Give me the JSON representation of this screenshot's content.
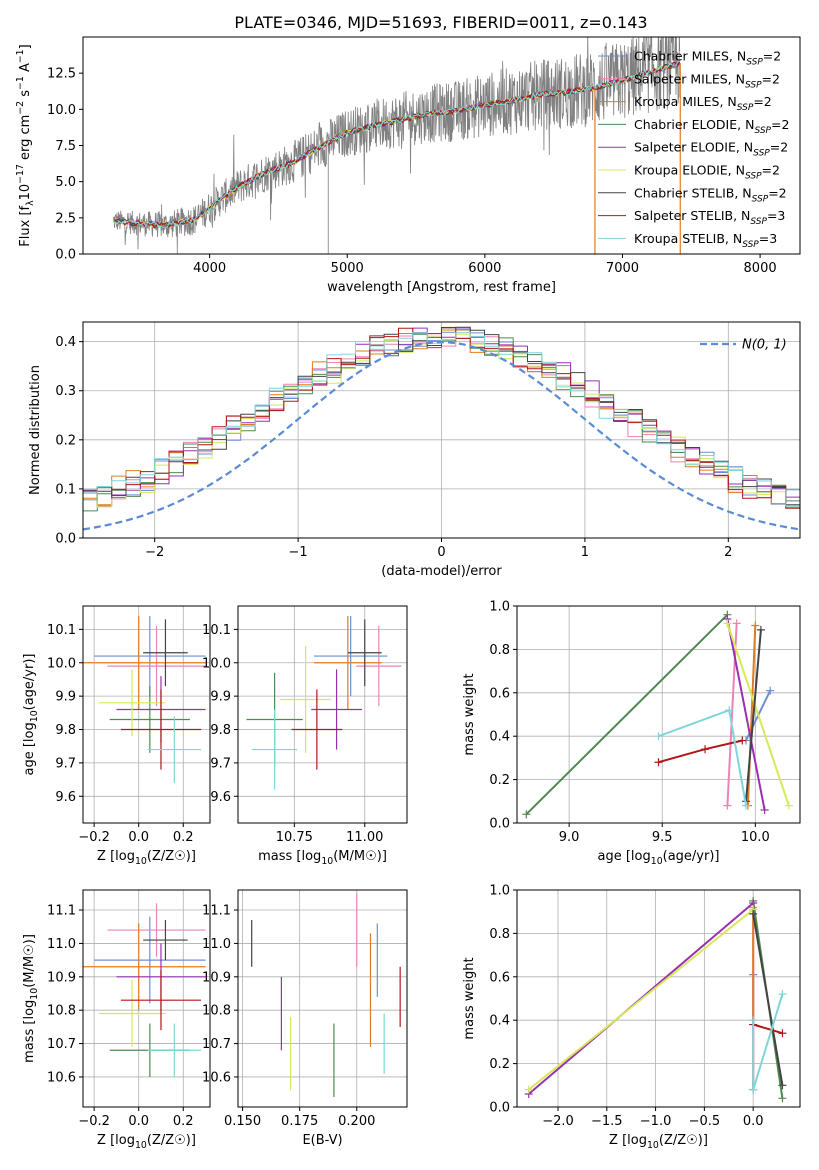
{
  "title": "PLATE=0346, MJD=51693, FIBERID=0011, z=0.143",
  "colors": {
    "chabrier_miles": "#6a8fd8",
    "salpeter_miles": "#ee82b4",
    "kroupa_miles": "#e07c1e",
    "chabrier_elodie": "#4f8a4f",
    "salpeter_elodie": "#9a2fb0",
    "kroupa_elodie": "#d7e85a",
    "chabrier_stelib": "#444444",
    "salpeter_stelib": "#b01818",
    "kroupa_stelib": "#7fd6d9",
    "data": "#808080",
    "normal": "#5b8bd6"
  },
  "legend": [
    {
      "key": "chabrier_miles",
      "label": "Chabrier MILES, N_SSP=2"
    },
    {
      "key": "salpeter_miles",
      "label": "Salpeter MILES, N_SSP=2"
    },
    {
      "key": "kroupa_miles",
      "label": "Kroupa MILES, N_SSP=2"
    },
    {
      "key": "chabrier_elodie",
      "label": "Chabrier ELODIE, N_SSP=2"
    },
    {
      "key": "salpeter_elodie",
      "label": "Salpeter ELODIE, N_SSP=2"
    },
    {
      "key": "kroupa_elodie",
      "label": "Kroupa ELODIE, N_SSP=2"
    },
    {
      "key": "chabrier_stelib",
      "label": "Chabrier STELIB, N_SSP=2"
    },
    {
      "key": "salpeter_stelib",
      "label": "Salpeter STELIB, N_SSP=3"
    },
    {
      "key": "kroupa_stelib",
      "label": "Kroupa STELIB, N_SSP=3"
    }
  ],
  "chart_data": [
    {
      "id": "spectrum",
      "type": "line",
      "xlabel": "wavelength [Angstrom, rest frame]",
      "ylabel": "Flux [f_λ 10^-17 erg cm^-2 s^-1 A^-1]",
      "xlim": [
        3080,
        8290
      ],
      "ylim": [
        0,
        15
      ],
      "xticks": [
        4000,
        5000,
        6000,
        7000,
        8000
      ],
      "yticks": [
        0.0,
        2.5,
        5.0,
        7.5,
        10.0,
        12.5
      ],
      "ytick_labels": [
        "0.0",
        "2.5",
        "5.0",
        "7.5",
        "10.0",
        "12.5"
      ],
      "grid": false,
      "legend_position": "upper right",
      "continuum_points": [
        [
          3300,
          2.3
        ],
        [
          3500,
          2.1
        ],
        [
          3700,
          2.0
        ],
        [
          3900,
          2.4
        ],
        [
          4000,
          3.2
        ],
        [
          4200,
          4.6
        ],
        [
          4400,
          5.6
        ],
        [
          4600,
          6.3
        ],
        [
          4800,
          7.4
        ],
        [
          5000,
          8.4
        ],
        [
          5200,
          8.9
        ],
        [
          5400,
          9.3
        ],
        [
          5600,
          9.7
        ],
        [
          5800,
          9.9
        ],
        [
          6000,
          10.3
        ],
        [
          6200,
          10.6
        ],
        [
          6400,
          11.0
        ],
        [
          6600,
          11.2
        ],
        [
          6800,
          11.5
        ],
        [
          7000,
          12.0
        ],
        [
          7200,
          12.6
        ],
        [
          7420,
          13.2
        ]
      ],
      "data_range": [
        3300,
        7420
      ],
      "model_cutoffs": {
        "kroupa_miles": [
          3500,
          6800
        ],
        "chabrier_stelib": [
          3300,
          7420
        ],
        "salpeter_stelib": [
          3300,
          7420
        ]
      }
    },
    {
      "id": "residuals",
      "type": "histogram",
      "xlabel": "(data-model)/error",
      "ylabel": "Normed distribution",
      "xlim": [
        -2.5,
        2.5
      ],
      "ylim": [
        0,
        0.44
      ],
      "xticks": [
        -2,
        -1,
        0,
        1,
        2
      ],
      "xtick_labels": [
        "−2",
        "−1",
        "0",
        "1",
        "2"
      ],
      "yticks": [
        0.0,
        0.1,
        0.2,
        0.3,
        0.4
      ],
      "ytick_labels": [
        "0.0",
        "0.1",
        "0.2",
        "0.3",
        "0.4"
      ],
      "grid": true,
      "legend_position": "upper right",
      "reference_curve": {
        "label": "N(0, 1)",
        "mean": 0,
        "sigma": 1
      },
      "bin_width": 0.1
    },
    {
      "id": "age_vs_Z",
      "type": "scatter",
      "xlabel": "Z [log10(Z/Z☉)]",
      "ylabel": "age [log10(age/yr)]",
      "xlim": [
        -0.25,
        0.32
      ],
      "ylim": [
        9.52,
        10.17
      ],
      "xticks": [
        -0.2,
        0.0,
        0.2
      ],
      "xtick_labels": [
        "−0.2",
        "0.0",
        "0.2"
      ],
      "yticks": [
        9.6,
        9.7,
        9.8,
        9.9,
        10.0,
        10.1
      ],
      "ytick_labels": [
        "9.6",
        "9.7",
        "9.8",
        "9.9",
        "10.0",
        "10.1"
      ],
      "grid": true,
      "points": [
        {
          "key": "chabrier_miles",
          "x": 0.05,
          "y": 10.02,
          "xerr": 0.25,
          "yerr": 0.12
        },
        {
          "key": "salpeter_miles",
          "x": 0.08,
          "y": 9.99,
          "xerr": 0.22,
          "yerr": 0.12
        },
        {
          "key": "kroupa_miles",
          "x": 0.0,
          "y": 10.0,
          "xerr": 0.3,
          "yerr": 0.14
        },
        {
          "key": "chabrier_elodie",
          "x": 0.05,
          "y": 9.83,
          "xerr": 0.18,
          "yerr": 0.1
        },
        {
          "key": "salpeter_elodie",
          "x": 0.1,
          "y": 9.86,
          "xerr": 0.2,
          "yerr": 0.1
        },
        {
          "key": "kroupa_elodie",
          "x": -0.03,
          "y": 9.88,
          "xerr": 0.15,
          "yerr": 0.1
        },
        {
          "key": "chabrier_stelib",
          "x": 0.12,
          "y": 10.03,
          "xerr": 0.1,
          "yerr": 0.1
        },
        {
          "key": "salpeter_stelib",
          "x": 0.1,
          "y": 9.8,
          "xerr": 0.18,
          "yerr": 0.12
        },
        {
          "key": "kroupa_stelib",
          "x": 0.16,
          "y": 9.74,
          "xerr": 0.12,
          "yerr": 0.1
        }
      ]
    },
    {
      "id": "age_vs_mass",
      "type": "scatter",
      "xlabel": "mass [log10(M/M☉)]",
      "ylabel": "",
      "xlim": [
        10.55,
        11.15
      ],
      "ylim": [
        9.52,
        10.17
      ],
      "xticks": [
        10.75,
        11.0
      ],
      "xtick_labels": [
        "10.75",
        "11.00"
      ],
      "yticks": [
        9.6,
        9.7,
        9.8,
        9.9,
        10.0,
        10.1
      ],
      "ytick_labels": [
        "9.6",
        "9.7",
        "9.8",
        "9.9",
        "10.0",
        "10.1"
      ],
      "grid": true,
      "points": [
        {
          "key": "chabrier_miles",
          "x": 10.95,
          "y": 10.02,
          "xerr": 0.13,
          "yerr": 0.12
        },
        {
          "key": "salpeter_miles",
          "x": 11.05,
          "y": 9.99,
          "xerr": 0.08,
          "yerr": 0.12
        },
        {
          "key": "kroupa_miles",
          "x": 10.94,
          "y": 10.0,
          "xerr": 0.12,
          "yerr": 0.14
        },
        {
          "key": "chabrier_elodie",
          "x": 10.68,
          "y": 9.83,
          "xerr": 0.1,
          "yerr": 0.14
        },
        {
          "key": "salpeter_elodie",
          "x": 10.9,
          "y": 9.86,
          "xerr": 0.09,
          "yerr": 0.12
        },
        {
          "key": "kroupa_elodie",
          "x": 10.79,
          "y": 9.89,
          "xerr": 0.09,
          "yerr": 0.16
        },
        {
          "key": "chabrier_stelib",
          "x": 11.0,
          "y": 10.03,
          "xerr": 0.06,
          "yerr": 0.1
        },
        {
          "key": "salpeter_stelib",
          "x": 10.83,
          "y": 9.8,
          "xerr": 0.09,
          "yerr": 0.12
        },
        {
          "key": "kroupa_stelib",
          "x": 10.68,
          "y": 9.74,
          "xerr": 0.08,
          "yerr": 0.12
        }
      ]
    },
    {
      "id": "weight_vs_age",
      "type": "line",
      "xlabel": "age [log10(age/yr)]",
      "ylabel": "mass weight",
      "xlim": [
        8.72,
        10.24
      ],
      "ylim": [
        0,
        1.0
      ],
      "xticks": [
        9.0,
        9.5,
        10.0
      ],
      "xtick_labels": [
        "9.0",
        "9.5",
        "10.0"
      ],
      "yticks": [
        0.0,
        0.2,
        0.4,
        0.6,
        0.8,
        1.0
      ],
      "ytick_labels": [
        "0.0",
        "0.2",
        "0.4",
        "0.6",
        "0.8",
        "1.0"
      ],
      "grid": true,
      "series": [
        {
          "key": "chabrier_miles",
          "x": [
            9.95,
            10.08
          ],
          "y": [
            0.38,
            0.61
          ]
        },
        {
          "key": "salpeter_miles",
          "x": [
            9.85,
            9.9
          ],
          "y": [
            0.08,
            0.92
          ]
        },
        {
          "key": "kroupa_miles",
          "x": [
            9.96,
            10.0
          ],
          "y": [
            0.08,
            0.91
          ]
        },
        {
          "key": "chabrier_elodie",
          "x": [
            8.77,
            9.85
          ],
          "y": [
            0.04,
            0.96
          ]
        },
        {
          "key": "salpeter_elodie",
          "x": [
            9.85,
            10.05
          ],
          "y": [
            0.94,
            0.06
          ]
        },
        {
          "key": "kroupa_elodie",
          "x": [
            9.85,
            10.18
          ],
          "y": [
            0.92,
            0.08
          ]
        },
        {
          "key": "chabrier_stelib",
          "x": [
            9.95,
            10.03
          ],
          "y": [
            0.1,
            0.89
          ]
        },
        {
          "key": "salpeter_stelib",
          "x": [
            9.48,
            9.73,
            9.93
          ],
          "y": [
            0.28,
            0.34,
            0.38
          ]
        },
        {
          "key": "kroupa_stelib",
          "x": [
            9.48,
            9.86,
            9.95
          ],
          "y": [
            0.4,
            0.52,
            0.08
          ]
        }
      ]
    },
    {
      "id": "mass_vs_Z",
      "type": "scatter",
      "xlabel": "Z [log10(Z/Z☉)]",
      "ylabel": "mass [log10(M/M☉)]",
      "xlim": [
        -0.25,
        0.32
      ],
      "ylim": [
        10.51,
        11.16
      ],
      "xticks": [
        -0.2,
        0.0,
        0.2
      ],
      "xtick_labels": [
        "−0.2",
        "0.0",
        "0.2"
      ],
      "yticks": [
        10.6,
        10.7,
        10.8,
        10.9,
        11.0,
        11.1
      ],
      "ytick_labels": [
        "10.6",
        "10.7",
        "10.8",
        "10.9",
        "11.0",
        "11.1"
      ],
      "grid": true,
      "points": [
        {
          "key": "chabrier_miles",
          "x": 0.05,
          "y": 10.95,
          "xerr": 0.25,
          "yerr": 0.13
        },
        {
          "key": "salpeter_miles",
          "x": 0.08,
          "y": 11.04,
          "xerr": 0.22,
          "yerr": 0.08
        },
        {
          "key": "kroupa_miles",
          "x": 0.0,
          "y": 10.93,
          "xerr": 0.3,
          "yerr": 0.13
        },
        {
          "key": "chabrier_elodie",
          "x": 0.05,
          "y": 10.68,
          "xerr": 0.18,
          "yerr": 0.08
        },
        {
          "key": "salpeter_elodie",
          "x": 0.1,
          "y": 10.9,
          "xerr": 0.2,
          "yerr": 0.1
        },
        {
          "key": "kroupa_elodie",
          "x": -0.03,
          "y": 10.79,
          "xerr": 0.15,
          "yerr": 0.1
        },
        {
          "key": "chabrier_stelib",
          "x": 0.12,
          "y": 11.01,
          "xerr": 0.1,
          "yerr": 0.06
        },
        {
          "key": "salpeter_stelib",
          "x": 0.1,
          "y": 10.83,
          "xerr": 0.18,
          "yerr": 0.09
        },
        {
          "key": "kroupa_stelib",
          "x": 0.16,
          "y": 10.68,
          "xerr": 0.12,
          "yerr": 0.08
        }
      ]
    },
    {
      "id": "mass_vs_ebv",
      "type": "scatter",
      "xlabel": "E(B-V)",
      "ylabel": "",
      "xlim": [
        0.148,
        0.222
      ],
      "ylim": [
        10.51,
        11.16
      ],
      "xticks": [
        0.15,
        0.175,
        0.2
      ],
      "xtick_labels": [
        "0.150",
        "0.175",
        "0.200"
      ],
      "yticks": [
        10.6,
        10.7,
        10.8,
        10.9,
        11.0,
        11.1
      ],
      "ytick_labels": [
        "10.6",
        "10.7",
        "10.8",
        "10.9",
        "11.0",
        "11.1"
      ],
      "grid": true,
      "points": [
        {
          "key": "chabrier_miles",
          "x": 0.209,
          "y": 10.95,
          "xerr": 0.0,
          "yerr": 0.11
        },
        {
          "key": "salpeter_miles",
          "x": 0.2,
          "y": 11.04,
          "xerr": 0.0,
          "yerr": 0.11
        },
        {
          "key": "kroupa_miles",
          "x": 0.206,
          "y": 10.86,
          "xerr": 0.0,
          "yerr": 0.17
        },
        {
          "key": "chabrier_elodie",
          "x": 0.19,
          "y": 10.65,
          "xerr": 0.0,
          "yerr": 0.11
        },
        {
          "key": "salpeter_elodie",
          "x": 0.167,
          "y": 10.79,
          "xerr": 0.0,
          "yerr": 0.11
        },
        {
          "key": "kroupa_elodie",
          "x": 0.171,
          "y": 10.67,
          "xerr": 0.0,
          "yerr": 0.11
        },
        {
          "key": "chabrier_stelib",
          "x": 0.154,
          "y": 11.0,
          "xerr": 0.0,
          "yerr": 0.07
        },
        {
          "key": "salpeter_stelib",
          "x": 0.219,
          "y": 10.84,
          "xerr": 0.0,
          "yerr": 0.09
        },
        {
          "key": "kroupa_stelib",
          "x": 0.212,
          "y": 10.7,
          "xerr": 0.0,
          "yerr": 0.09
        }
      ]
    },
    {
      "id": "weight_vs_Z",
      "type": "line",
      "xlabel": "Z [log10(Z/Z☉)]",
      "ylabel": "mass weight",
      "xlim": [
        -2.42,
        0.48
      ],
      "ylim": [
        0,
        1.0
      ],
      "xticks": [
        -2.0,
        -1.5,
        -1.0,
        -0.5,
        0.0
      ],
      "xtick_labels": [
        "−2.0",
        "−1.5",
        "−1.0",
        "−0.5",
        "0.0"
      ],
      "yticks": [
        0.0,
        0.2,
        0.4,
        0.6,
        0.8,
        1.0
      ],
      "ytick_labels": [
        "0.0",
        "0.2",
        "0.4",
        "0.6",
        "0.8",
        "1.0"
      ],
      "grid": true,
      "series": [
        {
          "key": "chabrier_miles",
          "x": [
            0.0,
            0.0
          ],
          "y": [
            0.38,
            0.61
          ]
        },
        {
          "key": "salpeter_miles",
          "x": [
            0.0,
            0.0
          ],
          "y": [
            0.08,
            0.92
          ]
        },
        {
          "key": "kroupa_miles",
          "x": [
            0.0,
            0.0
          ],
          "y": [
            0.08,
            0.91
          ]
        },
        {
          "key": "chabrier_elodie",
          "x": [
            0.0,
            0.3
          ],
          "y": [
            0.95,
            0.04
          ]
        },
        {
          "key": "salpeter_elodie",
          "x": [
            -2.3,
            0.0
          ],
          "y": [
            0.06,
            0.94
          ]
        },
        {
          "key": "kroupa_elodie",
          "x": [
            -2.3,
            0.0
          ],
          "y": [
            0.08,
            0.91
          ]
        },
        {
          "key": "chabrier_stelib",
          "x": [
            0.0,
            0.3
          ],
          "y": [
            0.89,
            0.1
          ]
        },
        {
          "key": "salpeter_stelib",
          "x": [
            0.0,
            0.3
          ],
          "y": [
            0.38,
            0.34
          ]
        },
        {
          "key": "kroupa_stelib",
          "x": [
            0.0,
            0.0,
            0.3
          ],
          "y": [
            0.4,
            0.08,
            0.52
          ]
        }
      ]
    }
  ]
}
